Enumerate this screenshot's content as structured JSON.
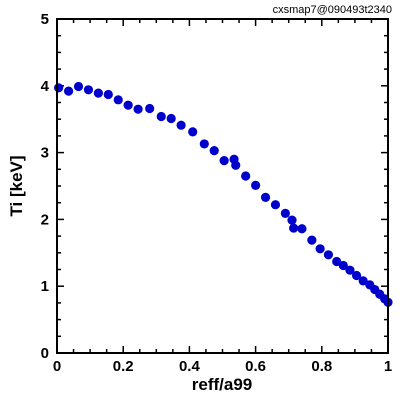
{
  "chart_data": {
    "type": "scatter",
    "title": "cxsmap7@090493t2340",
    "xlabel": "reff/a99",
    "ylabel": "Ti [keV]",
    "xlim": [
      0,
      1
    ],
    "ylim": [
      0,
      5
    ],
    "x_ticks": [
      0,
      0.2,
      0.4,
      0.6,
      0.8,
      1
    ],
    "x_tick_labels": [
      "0",
      "0.2",
      "0.4",
      "0.6",
      "0.8",
      "1"
    ],
    "y_ticks": [
      0,
      1,
      2,
      3,
      4,
      5
    ],
    "y_tick_labels": [
      "0",
      "1",
      "2",
      "3",
      "4",
      "5"
    ],
    "grid": false,
    "marker_color": "#0000cc",
    "series": [
      {
        "x": [
          0.005,
          0.035,
          0.065,
          0.095,
          0.125,
          0.155,
          0.185,
          0.215,
          0.245,
          0.28,
          0.315,
          0.345,
          0.375,
          0.41,
          0.445,
          0.475,
          0.505,
          0.535,
          0.54,
          0.57,
          0.6,
          0.63,
          0.66,
          0.69,
          0.71,
          0.715,
          0.74,
          0.77,
          0.795,
          0.82,
          0.845,
          0.865,
          0.885,
          0.905,
          0.925,
          0.945,
          0.96,
          0.975,
          0.99,
          1.0
        ],
        "y": [
          3.97,
          3.92,
          3.99,
          3.94,
          3.89,
          3.87,
          3.79,
          3.71,
          3.65,
          3.66,
          3.54,
          3.51,
          3.41,
          3.31,
          3.13,
          3.03,
          2.88,
          2.9,
          2.81,
          2.65,
          2.51,
          2.33,
          2.22,
          2.09,
          1.99,
          1.87,
          1.86,
          1.69,
          1.56,
          1.47,
          1.37,
          1.31,
          1.24,
          1.16,
          1.08,
          1.02,
          0.95,
          0.88,
          0.81,
          0.76
        ]
      }
    ]
  }
}
